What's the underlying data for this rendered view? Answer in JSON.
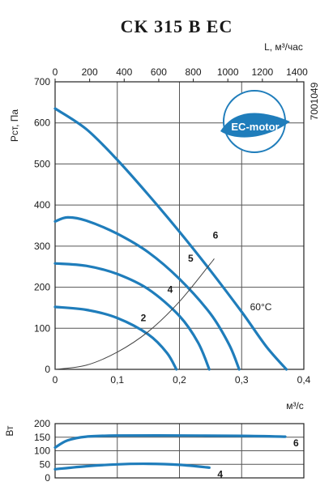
{
  "title": "CK 315 B EC",
  "article_number": "7001049",
  "badge_text": "EC-motor",
  "colors": {
    "curve": "#1f7dbb",
    "badge": "#1f7dbb"
  },
  "chart_data": [
    {
      "type": "line",
      "title": "CK 315 B EC",
      "xlabel": "м³/с",
      "ylabel": "Рст, Па",
      "xlim": [
        0,
        0.4
      ],
      "ylim": [
        0,
        700
      ],
      "x_ticks": [
        "0",
        "0,1",
        "0,2",
        "0,3",
        "0,4"
      ],
      "y_ticks": [
        "0",
        "100",
        "200",
        "300",
        "400",
        "500",
        "600",
        "700"
      ],
      "secondary_x": {
        "label": "L, м³/час",
        "lim": [
          0,
          1440
        ],
        "ticks": [
          "0",
          "200",
          "400",
          "600",
          "800",
          "1000",
          "1200",
          "1400"
        ]
      },
      "grid": true,
      "annotations": [
        "60°C"
      ],
      "series": [
        {
          "name": "6",
          "x": [
            0,
            0.05,
            0.1,
            0.15,
            0.2,
            0.25,
            0.3,
            0.34,
            0.372
          ],
          "y": [
            635,
            585,
            510,
            425,
            335,
            240,
            140,
            55,
            0
          ]
        },
        {
          "name": "5",
          "x": [
            0,
            0.02,
            0.05,
            0.1,
            0.15,
            0.2,
            0.25,
            0.28,
            0.296
          ],
          "y": [
            360,
            370,
            362,
            330,
            285,
            220,
            135,
            60,
            0
          ]
        },
        {
          "name": "4",
          "x": [
            0,
            0.05,
            0.1,
            0.15,
            0.2,
            0.23,
            0.248
          ],
          "y": [
            258,
            252,
            232,
            195,
            130,
            65,
            0
          ]
        },
        {
          "name": "2",
          "x": [
            0,
            0.05,
            0.1,
            0.15,
            0.18,
            0.195
          ],
          "y": [
            152,
            145,
            125,
            85,
            40,
            0
          ]
        },
        {
          "name": "system",
          "x": [
            0,
            0.05,
            0.1,
            0.15,
            0.2,
            0.25,
            0.255
          ],
          "y": [
            0,
            10,
            42,
            92,
            165,
            258,
            268
          ]
        }
      ]
    },
    {
      "type": "line",
      "ylabel": "Вт",
      "xlim": [
        0,
        0.4
      ],
      "ylim": [
        0,
        200
      ],
      "y_ticks": [
        "0",
        "50",
        "100",
        "150",
        "200"
      ],
      "grid": true,
      "series": [
        {
          "name": "6",
          "x": [
            0,
            0.02,
            0.05,
            0.1,
            0.2,
            0.3,
            0.37
          ],
          "y": [
            112,
            138,
            152,
            156,
            156,
            155,
            152
          ]
        },
        {
          "name": "4",
          "x": [
            0,
            0.05,
            0.1,
            0.15,
            0.2,
            0.248
          ],
          "y": [
            32,
            43,
            50,
            52,
            48,
            38
          ]
        }
      ]
    }
  ]
}
